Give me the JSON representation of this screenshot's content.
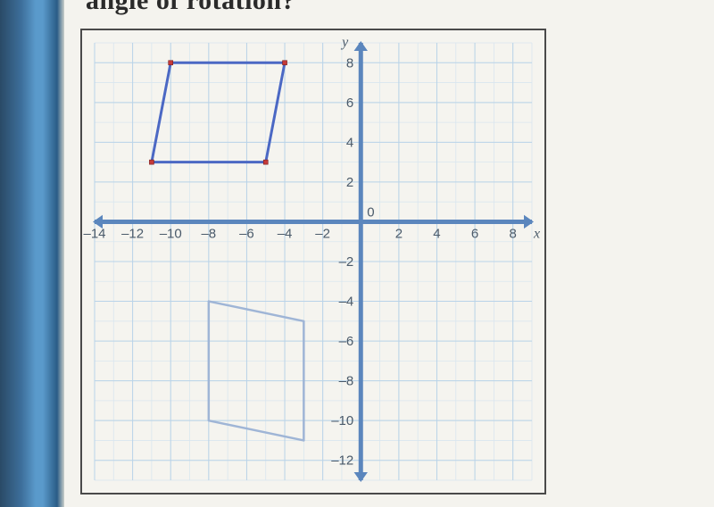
{
  "title": "angle of rotation?",
  "chart": {
    "type": "coordinate-grid",
    "background_color": "#f5f4ef",
    "grid_color": "#b9d3e8",
    "grid_color_minor": "#d9e6ef",
    "axis_color": "#5b86bd",
    "arrow_color": "#5b86bd",
    "tick_label_color": "#4a5a6a",
    "tick_label_fontsize": 15,
    "x": {
      "min": -14,
      "max": 9,
      "ticks": [
        -14,
        -12,
        -10,
        -8,
        -6,
        -4,
        -2,
        2,
        4,
        6,
        8
      ],
      "label": "x"
    },
    "y": {
      "min": -13,
      "max": 9,
      "ticks": [
        -12,
        -10,
        -8,
        -6,
        -4,
        -2,
        2,
        4,
        6,
        8
      ],
      "label": "y"
    },
    "origin_label": "0",
    "shapes": [
      {
        "id": "preimage",
        "type": "parallelogram",
        "stroke": "#4b68c4",
        "stroke_width": 3,
        "fill": "none",
        "point_color": "#c43a3a",
        "point_size": 5,
        "points": [
          {
            "x": -11,
            "y": 3
          },
          {
            "x": -5,
            "y": 3
          },
          {
            "x": -4,
            "y": 8
          },
          {
            "x": -10,
            "y": 8
          }
        ]
      },
      {
        "id": "image",
        "type": "parallelogram",
        "stroke": "#9fb5d6",
        "stroke_width": 2.5,
        "fill": "none",
        "point_color": null,
        "point_size": 0,
        "points": [
          {
            "x": -3,
            "y": -11
          },
          {
            "x": -3,
            "y": -5
          },
          {
            "x": -8,
            "y": -4
          },
          {
            "x": -8,
            "y": -10
          }
        ]
      }
    ]
  }
}
